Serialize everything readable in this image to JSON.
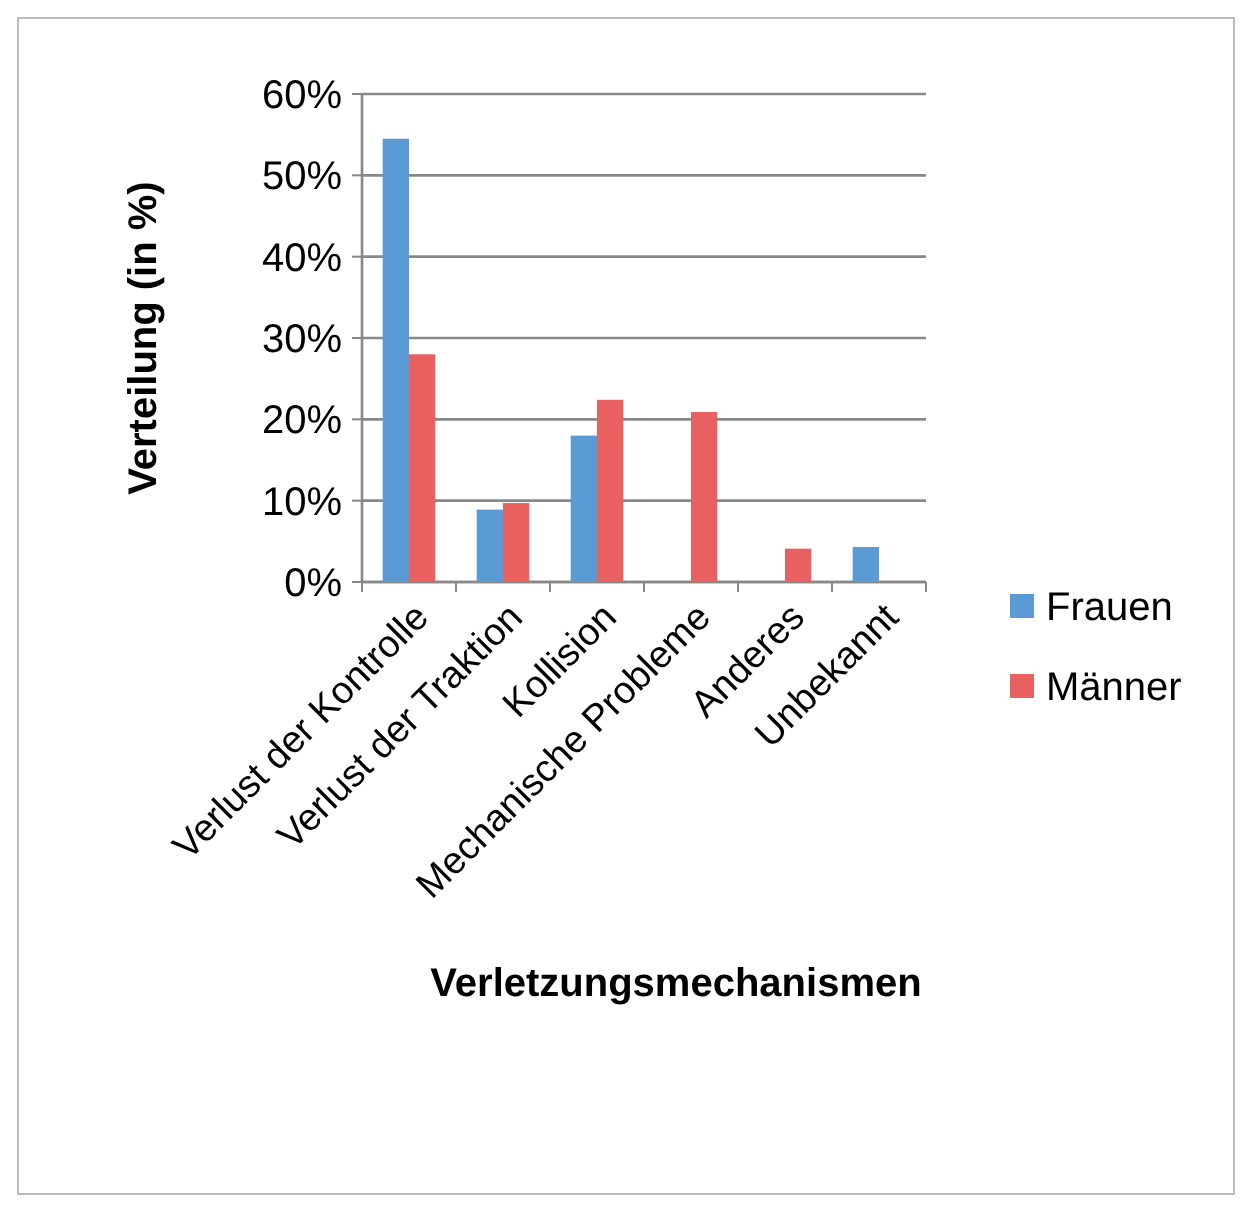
{
  "chart_data": {
    "type": "bar",
    "xlabel": "Verletzungsmechanismen",
    "ylabel": "Verteilung (in %)",
    "categories": [
      "Verlust der Kontrolle",
      "Verlust der Traktion",
      "Kollision",
      "Mechanische Probleme",
      "Anderes",
      "Unbekannt"
    ],
    "series": [
      {
        "name": "Frauen",
        "color": "#5b9bd5",
        "values": [
          54.5,
          8.9,
          18.0,
          0,
          0,
          4.3
        ]
      },
      {
        "name": "Männer",
        "color": "#e8605f",
        "values": [
          28.0,
          9.7,
          22.4,
          20.9,
          4.1,
          0
        ]
      }
    ],
    "ylim": [
      0,
      60
    ],
    "yticks": [
      {
        "value": 0,
        "label": "0%"
      },
      {
        "value": 10,
        "label": "10%"
      },
      {
        "value": 20,
        "label": "20%"
      },
      {
        "value": 30,
        "label": "30%"
      },
      {
        "value": 40,
        "label": "40%"
      },
      {
        "value": 50,
        "label": "50%"
      },
      {
        "value": 60,
        "label": "60%"
      }
    ],
    "grid": "y",
    "legend": "right"
  }
}
